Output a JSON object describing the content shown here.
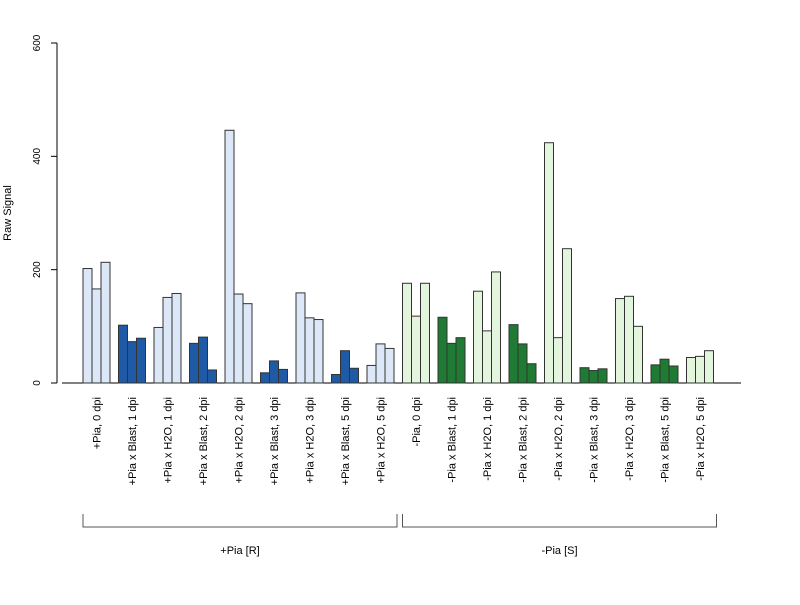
{
  "chart_data": {
    "type": "bar",
    "title": "",
    "xlabel": "",
    "ylabel": "Raw Signal",
    "ylim": [
      0,
      600
    ],
    "yticks": [
      0,
      200,
      400,
      600
    ],
    "grid": false,
    "legend": "none",
    "categories": [
      "+Pia, 0 dpi",
      "+Pia x Blast, 1 dpi",
      "+Pia x H2O, 1 dpi",
      "+Pia x Blast, 2 dpi",
      "+Pia x H2O, 2 dpi",
      "+Pia x Blast, 3 dpi",
      "+Pia x H2O, 3 dpi",
      "+Pia x Blast, 5 dpi",
      "+Pia x H2O, 5 dpi",
      "-Pia, 0 dpi",
      "-Pia x Blast, 1 dpi",
      "-Pia x H2O, 1 dpi",
      "-Pia x Blast, 2 dpi",
      "-Pia x H2O, 2 dpi",
      "-Pia x Blast, 3 dpi",
      "-Pia x H2O, 3 dpi",
      "-Pia x Blast, 5 dpi",
      "-Pia x H2O, 5 dpi"
    ],
    "replicates": [
      [
        202,
        166,
        213
      ],
      [
        102,
        73,
        79
      ],
      [
        98,
        151,
        158
      ],
      [
        70,
        81,
        23
      ],
      [
        446,
        157,
        140
      ],
      [
        18,
        39,
        24
      ],
      [
        159,
        115,
        112
      ],
      [
        15,
        57,
        26
      ],
      [
        31,
        69,
        61
      ],
      [
        176,
        118,
        176
      ],
      [
        116,
        70,
        80
      ],
      [
        162,
        92,
        196
      ],
      [
        103,
        69,
        34
      ],
      [
        424,
        80,
        237
      ],
      [
        27,
        22,
        25
      ],
      [
        149,
        153,
        100
      ],
      [
        32,
        42,
        30
      ],
      [
        45,
        47,
        57
      ]
    ],
    "bar_colors": [
      "#dce8f7",
      "#1f5aa6",
      "#dce8f7",
      "#1f5aa6",
      "#dce8f7",
      "#1f5aa6",
      "#dce8f7",
      "#1f5aa6",
      "#dce8f7",
      "#e3f5dc",
      "#1f7a33",
      "#e3f5dc",
      "#1f7a33",
      "#e3f5dc",
      "#1f7a33",
      "#e3f5dc",
      "#1f7a33",
      "#e3f5dc"
    ],
    "groups": [
      {
        "label": "+Pia [R]",
        "first": 0,
        "last": 8
      },
      {
        "label": "-Pia [S]",
        "first": 9,
        "last": 17
      }
    ]
  }
}
